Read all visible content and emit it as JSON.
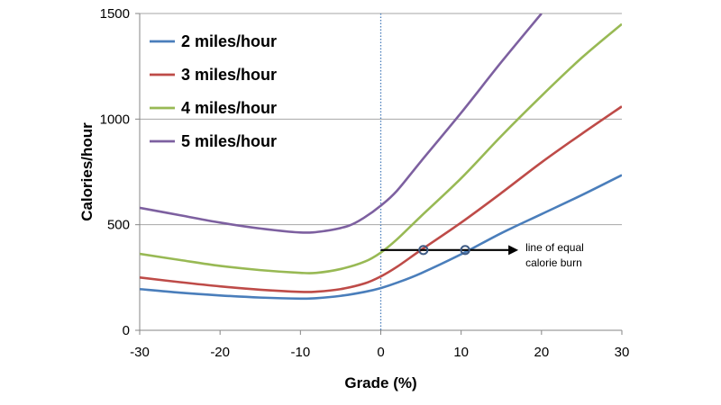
{
  "chart_data": {
    "type": "line",
    "xlabel": "Grade (%)",
    "ylabel": "Calories/hour",
    "xlim": [
      -30,
      30
    ],
    "ylim": [
      0,
      1500
    ],
    "x_ticks": [
      -30,
      -20,
      -10,
      0,
      10,
      20,
      30
    ],
    "y_ticks": [
      0,
      500,
      1000,
      1500
    ],
    "grid": "horizontal",
    "legend_position": "top-left",
    "series": [
      {
        "name": "2 miles/hour",
        "color": "#4a7ebb",
        "points": [
          [
            -30,
            195
          ],
          [
            -25,
            178
          ],
          [
            -20,
            165
          ],
          [
            -15,
            155
          ],
          [
            -10,
            150
          ],
          [
            -8,
            152
          ],
          [
            -5,
            163
          ],
          [
            -2,
            182
          ],
          [
            0,
            200
          ],
          [
            2,
            225
          ],
          [
            5,
            270
          ],
          [
            10,
            360
          ],
          [
            15,
            460
          ],
          [
            20,
            550
          ],
          [
            25,
            640
          ],
          [
            30,
            735
          ]
        ]
      },
      {
        "name": "3 miles/hour",
        "color": "#be4b48",
        "points": [
          [
            -30,
            250
          ],
          [
            -25,
            228
          ],
          [
            -20,
            208
          ],
          [
            -15,
            192
          ],
          [
            -10,
            182
          ],
          [
            -8,
            183
          ],
          [
            -5,
            195
          ],
          [
            -2,
            222
          ],
          [
            0,
            255
          ],
          [
            2,
            300
          ],
          [
            5,
            380
          ],
          [
            10,
            510
          ],
          [
            15,
            650
          ],
          [
            20,
            795
          ],
          [
            25,
            930
          ],
          [
            30,
            1060
          ]
        ]
      },
      {
        "name": "4 miles/hour",
        "color": "#98b954",
        "points": [
          [
            -30,
            362
          ],
          [
            -25,
            333
          ],
          [
            -20,
            305
          ],
          [
            -15,
            285
          ],
          [
            -10,
            272
          ],
          [
            -8,
            272
          ],
          [
            -5,
            290
          ],
          [
            -2,
            325
          ],
          [
            0,
            368
          ],
          [
            2,
            430
          ],
          [
            5,
            540
          ],
          [
            10,
            720
          ],
          [
            15,
            920
          ],
          [
            20,
            1110
          ],
          [
            25,
            1290
          ],
          [
            30,
            1450
          ]
        ]
      },
      {
        "name": "5 miles/hour",
        "color": "#7d60a0",
        "points": [
          [
            -30,
            580
          ],
          [
            -25,
            545
          ],
          [
            -20,
            510
          ],
          [
            -15,
            482
          ],
          [
            -10,
            463
          ],
          [
            -7,
            470
          ],
          [
            -4,
            495
          ],
          [
            -2,
            535
          ],
          [
            0,
            590
          ],
          [
            2,
            660
          ],
          [
            5,
            800
          ],
          [
            10,
            1030
          ],
          [
            15,
            1270
          ],
          [
            20,
            1500
          ]
        ]
      }
    ],
    "annotation": {
      "text_line1": "line of equal",
      "text_line2": "calorie burn",
      "y": 380,
      "x_start": 0,
      "x_end": 17,
      "markers_x": [
        5.3,
        10.5
      ]
    },
    "vertical_reference_x": 0
  }
}
